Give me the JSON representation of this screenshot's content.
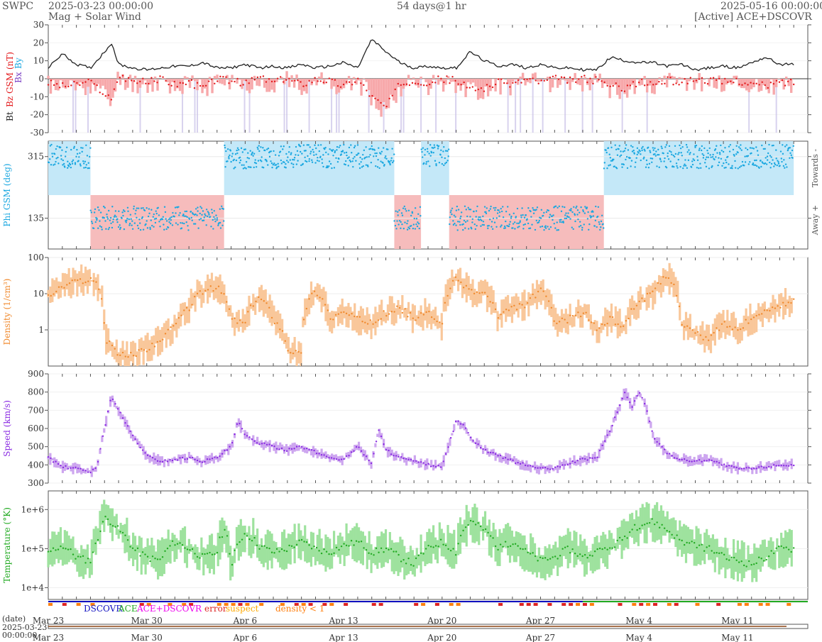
{
  "header": {
    "source": "SWPC",
    "start_date": "2025-03-23 00:00:00",
    "product": "Mag + Solar Wind",
    "span": "54 days@1 hr",
    "end_date": "2025-05-16 00:00:00",
    "mode": "[Active] ACE+DSCOVR"
  },
  "legend_status": {
    "labels": [
      "DSCOVR",
      "ACE",
      "ACE+DSCOVR",
      "error",
      "suspect",
      "density < 1"
    ],
    "colors": [
      "#1010c0",
      "#22aa22",
      "#ee00ee",
      "#dd2222",
      "#ffaa00",
      "#ff7f0e"
    ]
  },
  "bottom": {
    "date_label": "(date)",
    "ref_date": "2025-03-23",
    "ref_time": "00:00:00"
  },
  "colors": {
    "bt": "#222222",
    "bz": "#e31a1c",
    "bz_fill": "#f7a8aa",
    "by_fill": "#c8c0e8",
    "phi": "#1aa7e0",
    "phi_away": "#f6bcbc",
    "phi_towards": "#c4e8f8",
    "density": "#f08a2e",
    "density_fill": "#f9c79a",
    "speed": "#8a2be2",
    "speed_fill": "#cda6ef",
    "temp": "#22aa22",
    "temp_fill": "#9ee29e"
  },
  "chart_data": [
    {
      "type": "line",
      "ylabel_parts": [
        "Bt",
        "Bz GSM (nT)",
        "Bx",
        "By"
      ],
      "ylim": [
        -30,
        30
      ],
      "yticks": [
        -30,
        -20,
        -10,
        0,
        10,
        20,
        30
      ],
      "x_days": [
        0,
        1,
        2,
        3,
        4,
        4.5,
        5,
        6,
        7,
        8,
        9,
        10,
        11,
        12,
        13,
        14,
        15,
        16,
        17,
        18,
        19,
        20,
        21,
        22,
        23,
        24,
        25,
        26,
        27,
        28,
        29,
        30,
        31,
        32,
        33,
        34,
        35,
        36,
        37,
        38,
        39,
        40,
        41,
        42,
        43,
        44,
        45,
        46,
        47,
        48,
        49,
        50,
        51,
        52
      ],
      "series": [
        {
          "name": "Bt",
          "values": [
            6,
            14,
            8,
            6,
            15,
            20,
            8,
            6,
            5,
            6,
            7,
            7,
            9,
            6,
            6,
            8,
            6,
            7,
            6,
            8,
            6,
            7,
            9,
            6,
            22,
            15,
            9,
            6,
            7,
            6,
            6,
            15,
            10,
            7,
            8,
            6,
            8,
            6,
            6,
            5,
            5,
            12,
            10,
            9,
            9,
            7,
            8,
            5,
            6,
            7,
            6,
            9,
            12,
            8
          ]
        },
        {
          "name": "Bz GSM",
          "values": [
            -2,
            -4,
            -3,
            -2,
            -8,
            -12,
            2,
            -1,
            -2,
            0,
            -3,
            -2,
            -5,
            0,
            -1,
            -3,
            1,
            -2,
            0,
            -3,
            0,
            -1,
            -4,
            0,
            -10,
            -16,
            -3,
            -1,
            -2,
            0,
            -1,
            -6,
            -5,
            -2,
            -3,
            0,
            -2,
            0,
            -1,
            0,
            -1,
            -4,
            -5,
            -2,
            -3,
            -1,
            -2,
            0,
            -1,
            -2,
            -1,
            -3,
            -4,
            -2
          ]
        }
      ]
    },
    {
      "type": "scatter",
      "ylabel": "Phi GSM (deg)",
      "yticks": [
        135,
        315
      ],
      "sector_labels": [
        "Towards -",
        "Away +"
      ],
      "sectors": [
        {
          "from": "Mar 23",
          "to": "Mar 26",
          "polarity": "Towards -"
        },
        {
          "from": "Mar 26",
          "to": "Apr 4",
          "polarity": "Away +"
        },
        {
          "from": "Apr 4",
          "to": "Apr 16",
          "polarity": "Towards -"
        },
        {
          "from": "Apr 16",
          "to": "Apr 18",
          "polarity": "Away +"
        },
        {
          "from": "Apr 18",
          "to": "Apr 20",
          "polarity": "Towards -"
        },
        {
          "from": "Apr 20",
          "to": "May 1",
          "polarity": "Away +"
        },
        {
          "from": "May 1",
          "to": "May 15",
          "polarity": "Towards -"
        }
      ]
    },
    {
      "type": "line",
      "ylabel": "Density (1/cm³)",
      "scale": "log",
      "yticks": [
        "1",
        "10",
        "100"
      ],
      "x_days": [
        0,
        1,
        2,
        3,
        3.5,
        4,
        5,
        6,
        7,
        8,
        9,
        10,
        11,
        12,
        13,
        14,
        15,
        16,
        17,
        18,
        19,
        20,
        21,
        22,
        23,
        24,
        25,
        26,
        27,
        28,
        29,
        30,
        31,
        32,
        33,
        34,
        35,
        36,
        37,
        38,
        39,
        40,
        41,
        42,
        43,
        44,
        45,
        46,
        47,
        48,
        49,
        50,
        51,
        52,
        53
      ],
      "values": [
        8,
        15,
        22,
        25,
        18,
        0.6,
        0.2,
        0.2,
        0.3,
        0.5,
        1.2,
        4,
        12,
        15,
        2,
        1.5,
        8,
        2,
        0.3,
        0.2,
        12,
        2,
        3,
        2,
        1.5,
        3,
        4,
        2,
        3,
        1,
        25,
        12,
        10,
        2,
        4,
        5,
        12,
        1.5,
        2,
        3,
        1,
        2,
        1.2,
        6,
        10,
        30,
        1.5,
        0.8,
        0.5,
        1.5,
        1,
        2,
        3,
        5,
        6
      ]
    },
    {
      "type": "line",
      "ylabel": "Speed (km/s)",
      "ylim": [
        300,
        900
      ],
      "yticks": [
        300,
        400,
        500,
        600,
        700,
        800,
        900
      ],
      "x_days": [
        0,
        1,
        2,
        3,
        3.5,
        4,
        4.5,
        5,
        6,
        7,
        8,
        9,
        10,
        11,
        12,
        13,
        13.5,
        14,
        15,
        16,
        17,
        18,
        19,
        20,
        21,
        22,
        23,
        23.5,
        24,
        25,
        26,
        27,
        28,
        29,
        29.5,
        30,
        31,
        32,
        33,
        34,
        35,
        36,
        37,
        38,
        39,
        40,
        41,
        41.5,
        42,
        42.5,
        43,
        44,
        45,
        46,
        47,
        48,
        49,
        50,
        51,
        52
      ],
      "values": [
        440,
        390,
        380,
        360,
        400,
        600,
        780,
        700,
        560,
        450,
        420,
        430,
        440,
        420,
        440,
        500,
        640,
        560,
        520,
        500,
        480,
        500,
        470,
        440,
        430,
        500,
        410,
        590,
        480,
        440,
        420,
        400,
        390,
        640,
        620,
        550,
        480,
        450,
        420,
        400,
        380,
        380,
        410,
        430,
        440,
        600,
        800,
        720,
        800,
        720,
        560,
        460,
        430,
        420,
        430,
        400,
        380,
        380,
        390,
        400
      ]
    },
    {
      "type": "line",
      "ylabel": "Temperature (°K)",
      "scale": "log",
      "yticks": [
        "1e+4",
        "1e+5",
        "1e+6"
      ],
      "x_days": [
        0,
        1,
        2,
        3,
        3.5,
        4,
        4.5,
        5,
        6,
        7,
        8,
        9,
        10,
        11,
        12,
        12.5,
        13,
        14,
        15,
        16,
        17,
        18,
        19,
        20,
        21,
        22,
        23,
        24,
        25,
        26,
        27,
        28,
        29,
        30,
        31,
        32,
        33,
        34,
        35,
        36,
        37,
        38,
        39,
        40,
        41,
        42,
        43,
        44,
        45,
        46,
        47,
        48,
        49,
        50,
        51,
        52
      ],
      "values": [
        80000,
        120000,
        60000,
        50000,
        150000,
        600000,
        500000,
        300000,
        100000,
        60000,
        50000,
        150000,
        100000,
        60000,
        80000,
        300000,
        20000,
        250000,
        120000,
        80000,
        100000,
        150000,
        100000,
        80000,
        120000,
        150000,
        80000,
        100000,
        60000,
        40000,
        100000,
        150000,
        80000,
        500000,
        300000,
        100000,
        150000,
        80000,
        50000,
        60000,
        100000,
        60000,
        80000,
        100000,
        200000,
        400000,
        500000,
        300000,
        150000,
        120000,
        100000,
        60000,
        50000,
        40000,
        60000,
        100000
      ]
    }
  ],
  "x_axis": {
    "ticks": [
      "Mar 23",
      "Mar 30",
      "Apr 6",
      "Apr 13",
      "Apr 20",
      "Apr 27",
      "May 4",
      "May 11"
    ]
  }
}
